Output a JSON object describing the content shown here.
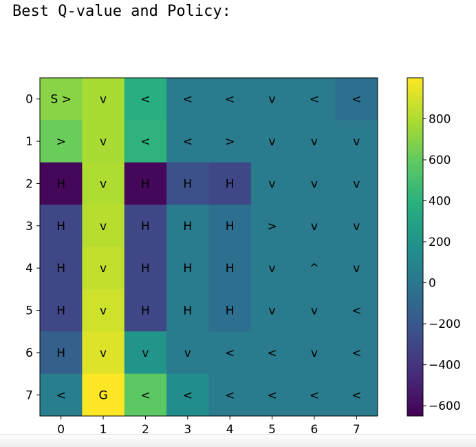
{
  "caption": "Best Q-value and Policy:",
  "chart_data": {
    "type": "heatmap",
    "x_ticks": [
      "0",
      "1",
      "2",
      "3",
      "4",
      "5",
      "6",
      "7"
    ],
    "y_ticks": [
      "0",
      "1",
      "2",
      "3",
      "4",
      "5",
      "6",
      "7"
    ],
    "values": [
      [
        700,
        780,
        380,
        30,
        30,
        30,
        30,
        -50
      ],
      [
        620,
        780,
        410,
        30,
        30,
        30,
        30,
        30
      ],
      [
        -620,
        800,
        -620,
        -250,
        -300,
        30,
        30,
        30
      ],
      [
        -300,
        820,
        -300,
        30,
        -50,
        30,
        30,
        30
      ],
      [
        -300,
        850,
        -300,
        30,
        -50,
        30,
        30,
        30
      ],
      [
        -300,
        880,
        -300,
        30,
        -50,
        30,
        30,
        30
      ],
      [
        -150,
        920,
        200,
        30,
        30,
        30,
        30,
        30
      ],
      [
        50,
        1000,
        580,
        150,
        30,
        30,
        30,
        30
      ]
    ],
    "annotations": [
      [
        "S >",
        "v",
        "<",
        "<",
        "<",
        "v",
        "<",
        "<"
      ],
      [
        ">",
        "v",
        "<",
        "<",
        ">",
        "v",
        "v",
        "v"
      ],
      [
        "H",
        "v",
        "H",
        "H",
        "H",
        "v",
        "v",
        "v"
      ],
      [
        "H",
        "v",
        "H",
        "H",
        "H",
        ">",
        "v",
        "v"
      ],
      [
        "H",
        "v",
        "H",
        "H",
        "H",
        "v",
        "^",
        "v"
      ],
      [
        "H",
        "v",
        "H",
        "H",
        "H",
        "v",
        "v",
        "<"
      ],
      [
        "H",
        "v",
        "v",
        "v",
        "<",
        "<",
        "v",
        "<"
      ],
      [
        "<",
        "G",
        "<",
        "<",
        "<",
        "<",
        "<",
        "<"
      ]
    ],
    "colormap": "viridis",
    "colorbar": {
      "range": [
        -650,
        1000
      ],
      "ticks": [
        800,
        600,
        400,
        200,
        0,
        -200,
        -400,
        -600
      ]
    }
  }
}
